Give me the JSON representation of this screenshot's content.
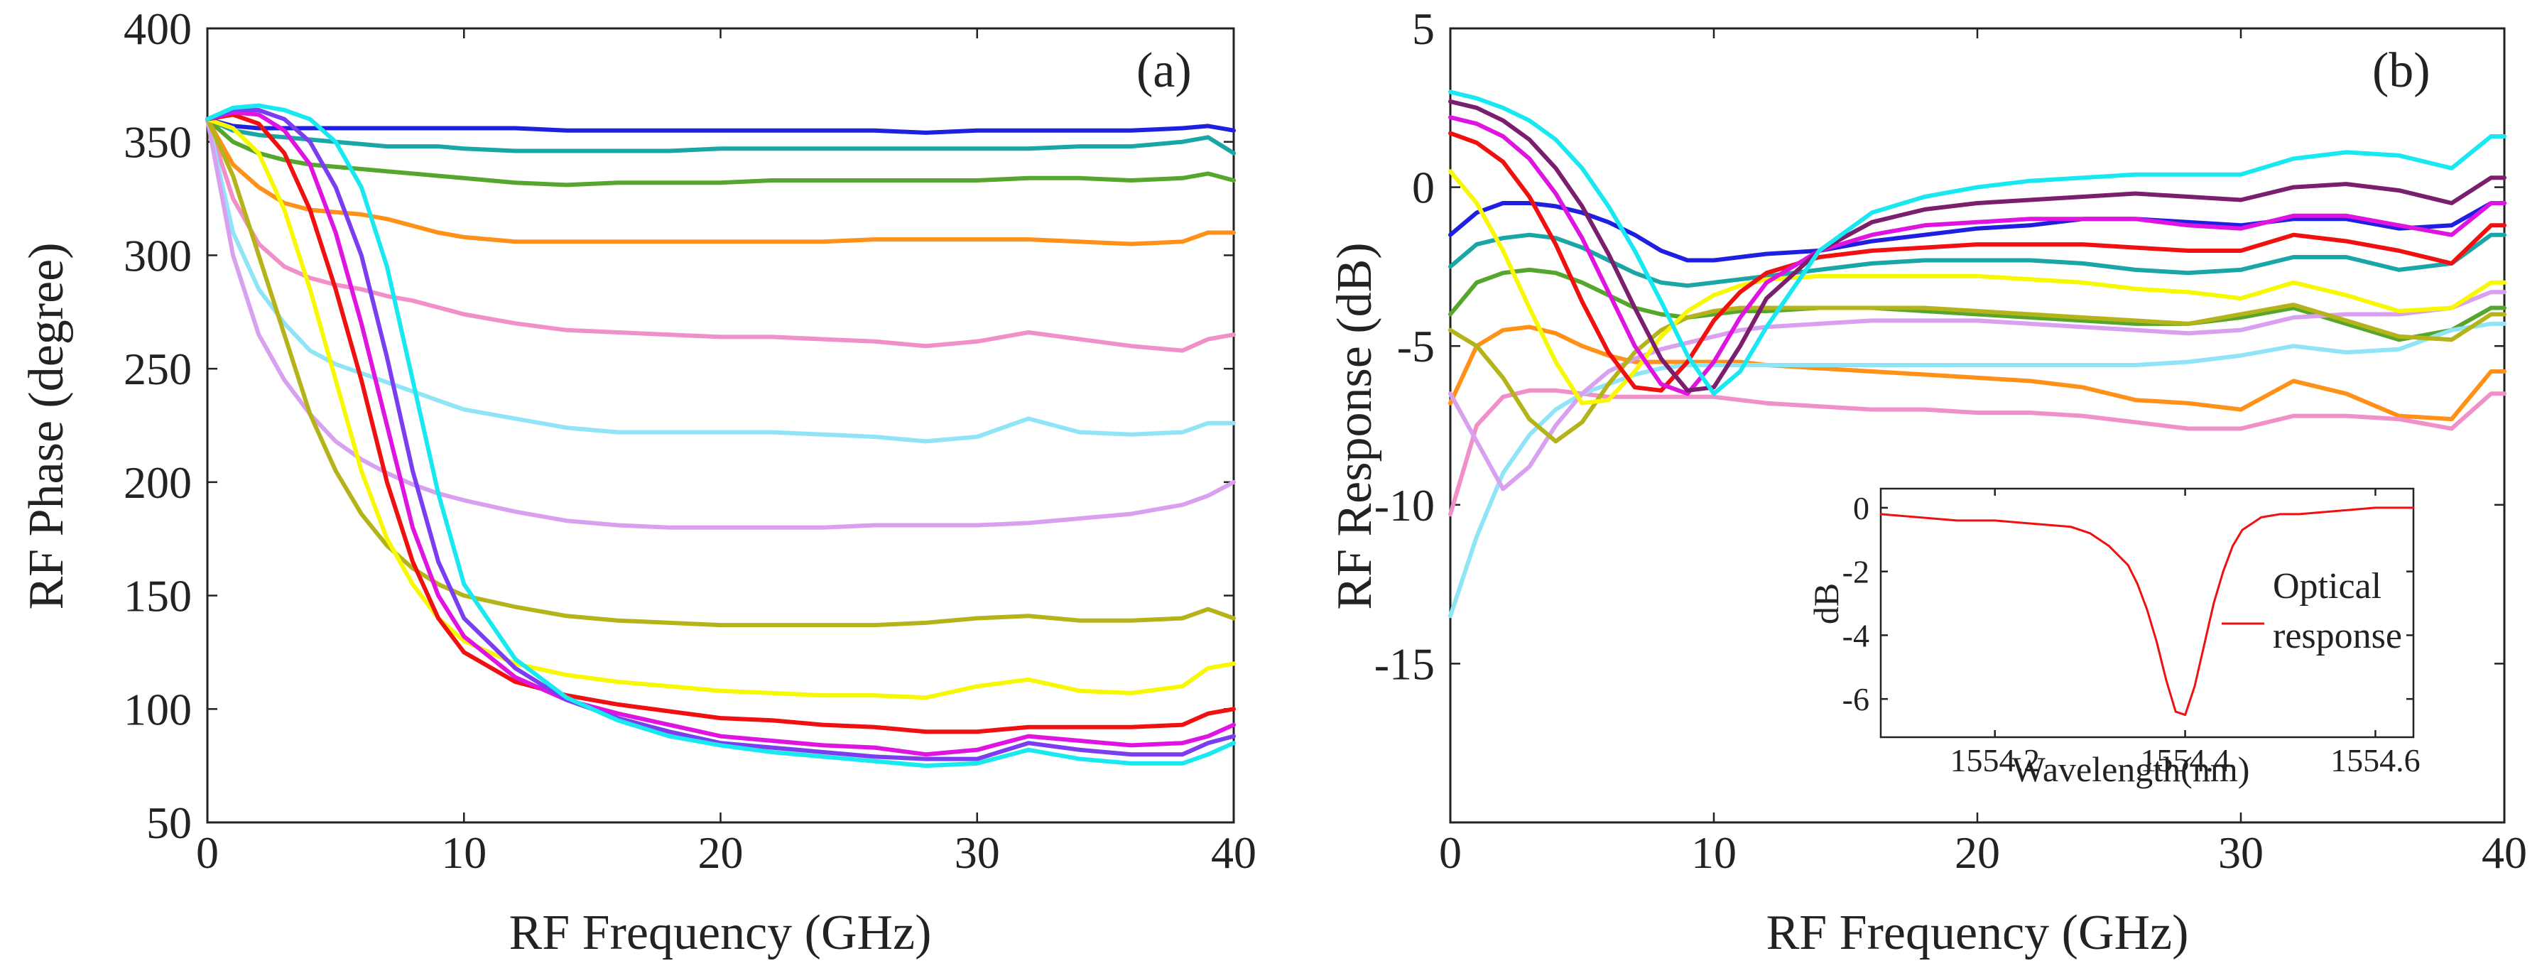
{
  "chart_data": [
    {
      "type": "line",
      "panel_label": "(a)",
      "xlabel": "RF Frequency (GHz)",
      "ylabel": "RF Phase (degree)",
      "xlim": [
        0,
        40
      ],
      "ylim": [
        50,
        400
      ],
      "x_ticks": [
        0,
        10,
        20,
        30,
        40
      ],
      "y_ticks": [
        50,
        100,
        150,
        200,
        250,
        300,
        350,
        400
      ],
      "grid": false,
      "x": [
        0,
        1,
        2,
        3,
        4,
        5,
        6,
        7,
        8,
        9,
        10,
        12,
        14,
        16,
        18,
        20,
        22,
        24,
        26,
        28,
        30,
        32,
        34,
        36,
        38,
        39,
        40
      ],
      "series": [
        {
          "name": "blue",
          "color": "#1f1fe0",
          "values": [
            360,
            357,
            356,
            356,
            356,
            356,
            356,
            356,
            356,
            356,
            356,
            356,
            355,
            355,
            355,
            355,
            355,
            355,
            355,
            354,
            355,
            355,
            355,
            355,
            356,
            357,
            355
          ]
        },
        {
          "name": "teal",
          "color": "#1aa6a6",
          "values": [
            360,
            355,
            353,
            352,
            351,
            350,
            349,
            348,
            348,
            348,
            347,
            346,
            346,
            346,
            346,
            347,
            347,
            347,
            347,
            347,
            347,
            347,
            348,
            348,
            350,
            352,
            345
          ]
        },
        {
          "name": "green",
          "color": "#56a62e",
          "values": [
            360,
            350,
            345,
            342,
            340,
            339,
            338,
            337,
            336,
            335,
            334,
            332,
            331,
            332,
            332,
            332,
            333,
            333,
            333,
            333,
            333,
            334,
            334,
            333,
            334,
            336,
            333
          ]
        },
        {
          "name": "orange",
          "color": "#ff9018",
          "values": [
            360,
            340,
            330,
            323,
            320,
            319,
            318,
            316,
            313,
            310,
            308,
            306,
            306,
            306,
            306,
            306,
            306,
            306,
            307,
            307,
            307,
            307,
            306,
            305,
            306,
            310,
            310
          ]
        },
        {
          "name": "pink",
          "color": "#f08fc8",
          "values": [
            360,
            325,
            305,
            295,
            290,
            287,
            285,
            282,
            280,
            277,
            274,
            270,
            267,
            266,
            265,
            264,
            264,
            263,
            262,
            260,
            262,
            266,
            263,
            260,
            258,
            263,
            265
          ]
        },
        {
          "name": "lightblue",
          "color": "#8fe4f8",
          "values": [
            360,
            310,
            285,
            270,
            258,
            252,
            248,
            244,
            240,
            236,
            232,
            228,
            224,
            222,
            222,
            222,
            222,
            221,
            220,
            218,
            220,
            228,
            222,
            221,
            222,
            226,
            226
          ]
        },
        {
          "name": "lavender",
          "color": "#d8a0ee",
          "values": [
            360,
            300,
            265,
            245,
            230,
            218,
            210,
            204,
            199,
            195,
            192,
            187,
            183,
            181,
            180,
            180,
            180,
            180,
            181,
            181,
            181,
            182,
            184,
            186,
            190,
            194,
            200
          ]
        },
        {
          "name": "olive",
          "color": "#b4b41a",
          "values": [
            360,
            335,
            300,
            265,
            230,
            205,
            186,
            172,
            162,
            155,
            150,
            145,
            141,
            139,
            138,
            137,
            137,
            137,
            137,
            138,
            140,
            141,
            139,
            139,
            140,
            144,
            140
          ]
        },
        {
          "name": "yellow",
          "color": "#f8f800",
          "values": [
            360,
            356,
            345,
            320,
            285,
            245,
            205,
            175,
            155,
            140,
            130,
            120,
            115,
            112,
            110,
            108,
            107,
            106,
            106,
            105,
            110,
            113,
            108,
            107,
            110,
            118,
            120
          ]
        },
        {
          "name": "red",
          "color": "#f01010",
          "values": [
            360,
            362,
            358,
            345,
            320,
            285,
            245,
            200,
            165,
            140,
            125,
            112,
            106,
            102,
            99,
            96,
            95,
            93,
            92,
            90,
            90,
            92,
            92,
            92,
            93,
            98,
            100
          ]
        },
        {
          "name": "magenta",
          "color": "#e014e0",
          "values": [
            360,
            363,
            362,
            355,
            340,
            310,
            270,
            225,
            180,
            150,
            132,
            114,
            104,
            98,
            93,
            88,
            86,
            84,
            83,
            80,
            82,
            88,
            86,
            84,
            85,
            88,
            93
          ]
        },
        {
          "name": "purple",
          "color": "#7a3ef0",
          "values": [
            360,
            364,
            364,
            360,
            350,
            330,
            300,
            255,
            205,
            165,
            140,
            118,
            104,
            96,
            90,
            85,
            83,
            81,
            79,
            78,
            78,
            85,
            82,
            80,
            80,
            85,
            88
          ]
        },
        {
          "name": "cyan",
          "color": "#18e8f0",
          "values": [
            360,
            365,
            366,
            364,
            360,
            350,
            330,
            295,
            245,
            195,
            155,
            122,
            105,
            95,
            88,
            84,
            81,
            79,
            77,
            75,
            76,
            82,
            78,
            76,
            76,
            80,
            85
          ]
        }
      ]
    },
    {
      "type": "line",
      "panel_label": "(b)",
      "xlabel": "RF Frequency (GHz)",
      "ylabel": "RF Response (dB)",
      "xlim": [
        0,
        40
      ],
      "ylim": [
        -20,
        5
      ],
      "x_ticks": [
        0,
        10,
        20,
        30,
        40
      ],
      "y_ticks": [
        -15,
        -10,
        -5,
        0,
        5
      ],
      "y_tick_labels": [
        "-15",
        "-10",
        "-5",
        "0",
        "5"
      ],
      "grid": false,
      "x": [
        0,
        1,
        2,
        3,
        4,
        5,
        6,
        7,
        8,
        9,
        10,
        11,
        12,
        14,
        16,
        18,
        20,
        22,
        24,
        26,
        28,
        30,
        32,
        34,
        36,
        38,
        39.5,
        40
      ],
      "series": [
        {
          "name": "blue",
          "color": "#1f1fe0",
          "values": [
            -1.5,
            -0.8,
            -0.5,
            -0.5,
            -0.6,
            -0.8,
            -1.1,
            -1.5,
            -2.0,
            -2.3,
            -2.3,
            -2.2,
            -2.1,
            -2.0,
            -1.7,
            -1.5,
            -1.3,
            -1.2,
            -1.0,
            -1.0,
            -1.1,
            -1.2,
            -1.0,
            -1.0,
            -1.3,
            -1.2,
            -0.5,
            -0.5
          ]
        },
        {
          "name": "teal",
          "color": "#1aa6a6",
          "values": [
            -2.5,
            -1.8,
            -1.6,
            -1.5,
            -1.6,
            -1.9,
            -2.3,
            -2.7,
            -3.0,
            -3.1,
            -3.0,
            -2.9,
            -2.8,
            -2.6,
            -2.4,
            -2.3,
            -2.3,
            -2.3,
            -2.4,
            -2.6,
            -2.7,
            -2.6,
            -2.2,
            -2.2,
            -2.6,
            -2.4,
            -1.5,
            -1.5
          ]
        },
        {
          "name": "green",
          "color": "#56a62e",
          "values": [
            -4.0,
            -3.0,
            -2.7,
            -2.6,
            -2.7,
            -3.0,
            -3.4,
            -3.8,
            -4.0,
            -4.1,
            -4.0,
            -3.9,
            -3.9,
            -3.8,
            -3.8,
            -3.9,
            -4.0,
            -4.1,
            -4.2,
            -4.3,
            -4.3,
            -4.1,
            -3.8,
            -4.3,
            -4.8,
            -4.5,
            -3.8,
            -3.8
          ]
        },
        {
          "name": "orange",
          "color": "#ff9018",
          "values": [
            -6.8,
            -5.0,
            -4.5,
            -4.4,
            -4.6,
            -5.0,
            -5.3,
            -5.5,
            -5.5,
            -5.5,
            -5.5,
            -5.5,
            -5.6,
            -5.7,
            -5.8,
            -5.9,
            -6.0,
            -6.1,
            -6.3,
            -6.7,
            -6.8,
            -7.0,
            -6.1,
            -6.5,
            -7.2,
            -7.3,
            -5.8,
            -5.8
          ]
        },
        {
          "name": "pink",
          "color": "#f08fc8",
          "values": [
            -10.3,
            -7.5,
            -6.6,
            -6.4,
            -6.4,
            -6.5,
            -6.6,
            -6.6,
            -6.6,
            -6.6,
            -6.6,
            -6.7,
            -6.8,
            -6.9,
            -7.0,
            -7.0,
            -7.1,
            -7.1,
            -7.2,
            -7.4,
            -7.6,
            -7.6,
            -7.2,
            -7.2,
            -7.3,
            -7.6,
            -6.5,
            -6.5
          ]
        },
        {
          "name": "lightblue",
          "color": "#8fe4f8",
          "values": [
            -13.5,
            -11.0,
            -9.0,
            -7.8,
            -7.0,
            -6.5,
            -6.2,
            -5.9,
            -5.7,
            -5.6,
            -5.6,
            -5.6,
            -5.6,
            -5.6,
            -5.6,
            -5.6,
            -5.6,
            -5.6,
            -5.6,
            -5.6,
            -5.5,
            -5.3,
            -5.0,
            -5.2,
            -5.1,
            -4.5,
            -4.3,
            -4.3
          ]
        },
        {
          "name": "lavender",
          "color": "#d8a0ee",
          "values": [
            -6.5,
            -8.0,
            -9.5,
            -8.8,
            -7.5,
            -6.5,
            -5.8,
            -5.4,
            -5.1,
            -4.9,
            -4.7,
            -4.5,
            -4.4,
            -4.3,
            -4.2,
            -4.2,
            -4.2,
            -4.3,
            -4.4,
            -4.5,
            -4.6,
            -4.5,
            -4.1,
            -4.0,
            -4.0,
            -3.8,
            -3.3,
            -3.3
          ]
        },
        {
          "name": "olive",
          "color": "#b4b41a",
          "values": [
            -4.5,
            -5.0,
            -6.0,
            -7.3,
            -8.0,
            -7.4,
            -6.2,
            -5.2,
            -4.5,
            -4.1,
            -3.9,
            -3.8,
            -3.8,
            -3.8,
            -3.8,
            -3.8,
            -3.9,
            -4.0,
            -4.1,
            -4.2,
            -4.3,
            -4.0,
            -3.7,
            -4.2,
            -4.7,
            -4.8,
            -4.0,
            -4.0
          ]
        },
        {
          "name": "yellow",
          "color": "#f8f800",
          "values": [
            0.5,
            -0.5,
            -2.0,
            -3.8,
            -5.5,
            -6.8,
            -6.7,
            -5.8,
            -4.7,
            -3.9,
            -3.4,
            -3.1,
            -2.9,
            -2.8,
            -2.8,
            -2.8,
            -2.8,
            -2.9,
            -3.0,
            -3.2,
            -3.3,
            -3.5,
            -3.0,
            -3.4,
            -3.9,
            -3.8,
            -3.0,
            -3.0
          ]
        },
        {
          "name": "red",
          "color": "#f01010",
          "values": [
            1.7,
            1.4,
            0.8,
            -0.3,
            -1.8,
            -3.6,
            -5.2,
            -6.3,
            -6.4,
            -5.5,
            -4.2,
            -3.3,
            -2.7,
            -2.2,
            -2.0,
            -1.9,
            -1.8,
            -1.8,
            -1.8,
            -1.9,
            -2.0,
            -2.0,
            -1.5,
            -1.7,
            -2.0,
            -2.4,
            -1.2,
            -1.2
          ]
        },
        {
          "name": "magenta",
          "color": "#e014e0",
          "values": [
            2.2,
            2.0,
            1.6,
            0.9,
            -0.2,
            -1.6,
            -3.3,
            -5.0,
            -6.2,
            -6.5,
            -5.5,
            -4.1,
            -3.0,
            -2.0,
            -1.5,
            -1.2,
            -1.1,
            -1.0,
            -1.0,
            -1.0,
            -1.2,
            -1.3,
            -0.9,
            -0.9,
            -1.2,
            -1.5,
            -0.5,
            -0.5
          ]
        },
        {
          "name": "purple",
          "color": "#7a1e6e",
          "values": [
            2.7,
            2.5,
            2.1,
            1.5,
            0.6,
            -0.6,
            -2.1,
            -3.8,
            -5.4,
            -6.4,
            -6.3,
            -5.0,
            -3.5,
            -2.0,
            -1.1,
            -0.7,
            -0.5,
            -0.4,
            -0.3,
            -0.2,
            -0.3,
            -0.4,
            0.0,
            0.1,
            -0.1,
            -0.5,
            0.3,
            0.3
          ]
        },
        {
          "name": "cyan",
          "color": "#18e8f0",
          "values": [
            3.0,
            2.8,
            2.5,
            2.1,
            1.5,
            0.6,
            -0.6,
            -2.0,
            -3.6,
            -5.3,
            -6.5,
            -5.8,
            -4.4,
            -2.0,
            -0.8,
            -0.3,
            0.0,
            0.2,
            0.3,
            0.4,
            0.4,
            0.4,
            0.9,
            1.1,
            1.0,
            0.6,
            1.6,
            1.6
          ]
        }
      ],
      "inset": {
        "type": "line",
        "xlabel": "Wavelength(nm)",
        "ylabel": "dB",
        "xlim": [
          1554.08,
          1554.64
        ],
        "ylim": [
          -7.2,
          0.6
        ],
        "x_ticks": [
          1554.2,
          1554.4,
          1554.6
        ],
        "x_tick_labels": [
          "1554.2",
          "1554.4",
          "1554.6"
        ],
        "y_ticks": [
          0,
          -2,
          -4,
          -6
        ],
        "y_tick_labels": [
          "0",
          "-2",
          "-4",
          "-6"
        ],
        "legend": [
          "Optical",
          "response"
        ],
        "series": [
          {
            "name": "Optical response",
            "color": "#f01010",
            "x": [
              1554.08,
              1554.12,
              1554.16,
              1554.2,
              1554.24,
              1554.28,
              1554.3,
              1554.32,
              1554.34,
              1554.35,
              1554.36,
              1554.37,
              1554.38,
              1554.39,
              1554.4,
              1554.41,
              1554.42,
              1554.43,
              1554.44,
              1554.45,
              1554.46,
              1554.48,
              1554.5,
              1554.52,
              1554.56,
              1554.6,
              1554.64
            ],
            "values": [
              -0.2,
              -0.3,
              -0.4,
              -0.4,
              -0.5,
              -0.6,
              -0.8,
              -1.2,
              -1.8,
              -2.4,
              -3.2,
              -4.2,
              -5.4,
              -6.4,
              -6.5,
              -5.6,
              -4.3,
              -3.0,
              -2.0,
              -1.2,
              -0.7,
              -0.3,
              -0.2,
              -0.2,
              -0.1,
              0.0,
              0.0
            ]
          }
        ]
      }
    }
  ]
}
